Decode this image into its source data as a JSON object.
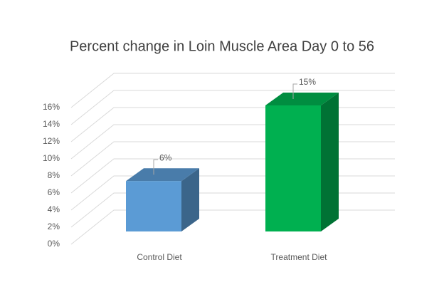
{
  "chart_data": {
    "type": "bar3d",
    "title": "Percent change in Loin Muscle Area Day 0 to 56",
    "categories": [
      "Control Diet",
      "Treatment Diet"
    ],
    "values": [
      6,
      15
    ],
    "value_labels": [
      "6%",
      "15%"
    ],
    "colors": [
      "#5b9bd5",
      "#00b050"
    ],
    "ylim": [
      0,
      16
    ],
    "yticks": [
      {
        "value": 0,
        "label": "0%"
      },
      {
        "value": 2,
        "label": "2%"
      },
      {
        "value": 4,
        "label": "4%"
      },
      {
        "value": 6,
        "label": "6%"
      },
      {
        "value": 8,
        "label": "8%"
      },
      {
        "value": 10,
        "label": "10%"
      },
      {
        "value": 12,
        "label": "12%"
      },
      {
        "value": 14,
        "label": "14%"
      },
      {
        "value": 16,
        "label": "16%"
      }
    ],
    "grid": true
  }
}
